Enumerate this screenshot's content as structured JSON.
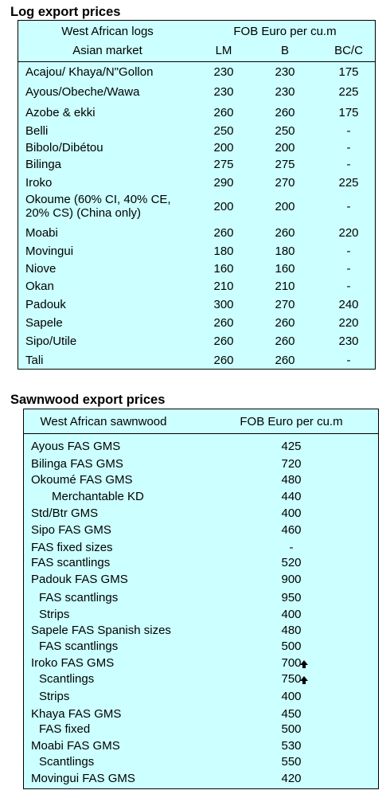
{
  "log": {
    "title": "Log export prices",
    "header1": {
      "label": "West African logs",
      "price": "FOB Euro per cu.m"
    },
    "header2": {
      "label": "Asian market",
      "lm": "LM",
      "b": "B",
      "bcc": "BC/C"
    },
    "rows": [
      {
        "name": "Acajou/ Khaya/N\"Gollon",
        "lm": "230",
        "b": "230",
        "bcc": "175"
      },
      {
        "name": "Ayous/Obeche/Wawa",
        "lm": "230",
        "b": "230",
        "bcc": "225"
      },
      {
        "name": "Azobe & ekki",
        "lm": "260",
        "b": "260",
        "bcc": "175"
      },
      {
        "name": "Belli",
        "lm": "250",
        "b": "250",
        "bcc": "-"
      },
      {
        "name": "Bibolo/Dibétou",
        "lm": "200",
        "b": "200",
        "bcc": "-"
      },
      {
        "name": "Bilinga",
        "lm": "275",
        "b": "275",
        "bcc": "-"
      },
      {
        "name": "Iroko",
        "lm": "290",
        "b": "270",
        "bcc": "225"
      },
      {
        "name": "Okoume (60% CI, 40% CE, 20% CS) (China only)",
        "lm": "200",
        "b": "200",
        "bcc": "-"
      },
      {
        "name": "Moabi",
        "lm": "260",
        "b": "260",
        "bcc": "220"
      },
      {
        "name": "Movingui",
        "lm": "180",
        "b": "180",
        "bcc": "-"
      },
      {
        "name": "Niove",
        "lm": "160",
        "b": "160",
        "bcc": "-"
      },
      {
        "name": "Okan",
        "lm": "210",
        "b": "210",
        "bcc": "-"
      },
      {
        "name": "Padouk",
        "lm": "300",
        "b": "270",
        "bcc": "240"
      },
      {
        "name": "Sapele",
        "lm": "260",
        "b": "260",
        "bcc": "220"
      },
      {
        "name": "Sipo/Utile",
        "lm": "260",
        "b": "260",
        "bcc": "230"
      },
      {
        "name": "Tali",
        "lm": "260",
        "b": "260",
        "bcc": "-"
      }
    ]
  },
  "sawn": {
    "title": "Sawnwood export prices",
    "header": {
      "label": "West African sawnwood",
      "price": "FOB Euro per cu.m"
    },
    "rows": [
      {
        "name": "Ayous FAS GMS",
        "price": "425",
        "indent": 0
      },
      {
        "name": "Bilinga FAS GMS",
        "price": "720",
        "indent": 0
      },
      {
        "name": "Okoumé FAS GMS",
        "price": "480",
        "indent": 0
      },
      {
        "name": "Merchantable KD",
        "price": "440",
        "indent": 2
      },
      {
        "name": "Std/Btr GMS",
        "price": "400",
        "indent": 0
      },
      {
        "name": "Sipo FAS GMS",
        "price": "460",
        "indent": 0
      },
      {
        "name": "FAS fixed sizes",
        "price": "-",
        "indent": 0
      },
      {
        "name": "FAS scantlings",
        "price": "520",
        "indent": 0
      },
      {
        "name": "Padouk FAS GMS",
        "price": "900",
        "indent": 0
      },
      {
        "name": "FAS scantlings",
        "price": "950",
        "indent": 1
      },
      {
        "name": "Strips",
        "price": "400",
        "indent": 1
      },
      {
        "name": "Sapele FAS Spanish sizes",
        "price": "480",
        "indent": 0
      },
      {
        "name": "FAS scantlings",
        "price": "500",
        "indent": 1
      },
      {
        "name": "Iroko FAS GMS",
        "price": "700",
        "indent": 0,
        "arrow": "up-arrow-icon"
      },
      {
        "name": "Scantlings",
        "price": "750",
        "indent": 1,
        "arrow": "up-arrow-icon"
      },
      {
        "name": "Strips",
        "price": "400",
        "indent": 1
      },
      {
        "name": "Khaya FAS GMS",
        "price": "450",
        "indent": 0
      },
      {
        "name": "FAS fixed",
        "price": "500",
        "indent": 1
      },
      {
        "name": "Moabi FAS GMS",
        "price": "530",
        "indent": 0
      },
      {
        "name": "Scantlings",
        "price": "550",
        "indent": 1
      },
      {
        "name": "Movingui FAS GMS",
        "price": "420",
        "indent": 0
      }
    ]
  }
}
